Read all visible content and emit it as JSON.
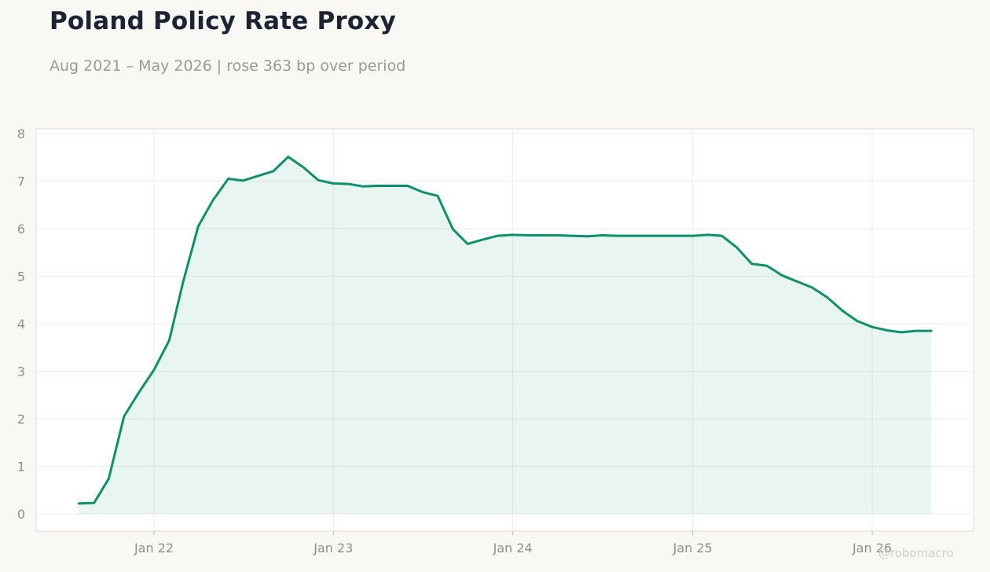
{
  "title": "Poland Policy Rate Proxy",
  "subtitle": "Aug 2021 – May 2026 | rose 363 bp over period",
  "watermark": "@robomacro",
  "colors": {
    "line": "#0e9068",
    "fill": "#0e9068",
    "background": "#f9f8f5",
    "plot_background": "#ffffff",
    "grid": "#eeeeea",
    "axis_text": "#8f8f8a"
  },
  "chart_data": {
    "type": "area",
    "title": "Poland Policy Rate Proxy",
    "subtitle": "Aug 2021 – May 2026 | rose 363 bp over period",
    "xlabel": "",
    "ylabel": "",
    "ylim": [
      0,
      8
    ],
    "xlim": [
      "2021-06-01",
      "2026-07-01"
    ],
    "grid": true,
    "legend": "none",
    "x_ticks": [
      {
        "date": "2022-01-01",
        "label": "Jan 22"
      },
      {
        "date": "2023-01-01",
        "label": "Jan 23"
      },
      {
        "date": "2024-01-01",
        "label": "Jan 24"
      },
      {
        "date": "2025-01-01",
        "label": "Jan 25"
      },
      {
        "date": "2026-01-01",
        "label": "Jan 26"
      }
    ],
    "y_ticks": [
      0,
      1,
      2,
      3,
      4,
      5,
      6,
      7,
      8
    ],
    "series": [
      {
        "x": [
          "2021-08-01",
          "2021-09-01",
          "2021-10-01",
          "2021-11-01",
          "2021-12-01",
          "2022-01-01",
          "2022-02-01",
          "2022-03-01",
          "2022-04-01",
          "2022-05-01",
          "2022-06-01",
          "2022-07-01",
          "2022-08-01",
          "2022-09-01",
          "2022-10-01",
          "2022-11-01",
          "2022-12-01",
          "2023-01-01",
          "2023-02-01",
          "2023-03-01",
          "2023-04-01",
          "2023-05-01",
          "2023-06-01",
          "2023-07-01",
          "2023-08-01",
          "2023-09-01",
          "2023-10-01",
          "2023-11-01",
          "2023-12-01",
          "2024-01-01",
          "2024-02-01",
          "2024-03-01",
          "2024-04-01",
          "2024-05-01",
          "2024-06-01",
          "2024-07-01",
          "2024-08-01",
          "2024-09-01",
          "2024-10-01",
          "2024-11-01",
          "2024-12-01",
          "2025-01-01",
          "2025-02-01",
          "2025-03-01",
          "2025-04-01",
          "2025-05-01",
          "2025-06-01",
          "2025-07-01",
          "2025-08-01",
          "2025-09-01",
          "2025-10-01",
          "2025-11-01",
          "2025-12-01",
          "2026-01-01",
          "2026-02-01",
          "2026-03-01",
          "2026-04-01",
          "2026-05-01"
        ],
        "values": [
          0.22,
          0.23,
          0.74,
          2.05,
          2.55,
          3.03,
          3.65,
          4.87,
          6.05,
          6.6,
          7.05,
          7.01,
          7.11,
          7.21,
          7.51,
          7.29,
          7.02,
          6.95,
          6.94,
          6.89,
          6.9,
          6.9,
          6.9,
          6.77,
          6.69,
          5.99,
          5.68,
          5.77,
          5.85,
          5.87,
          5.86,
          5.86,
          5.86,
          5.85,
          5.84,
          5.86,
          5.85,
          5.85,
          5.85,
          5.85,
          5.85,
          5.85,
          5.87,
          5.85,
          5.6,
          5.26,
          5.22,
          5.02,
          4.89,
          4.76,
          4.56,
          4.28,
          4.06,
          3.93,
          3.86,
          3.82,
          3.85,
          3.85
        ]
      }
    ]
  }
}
